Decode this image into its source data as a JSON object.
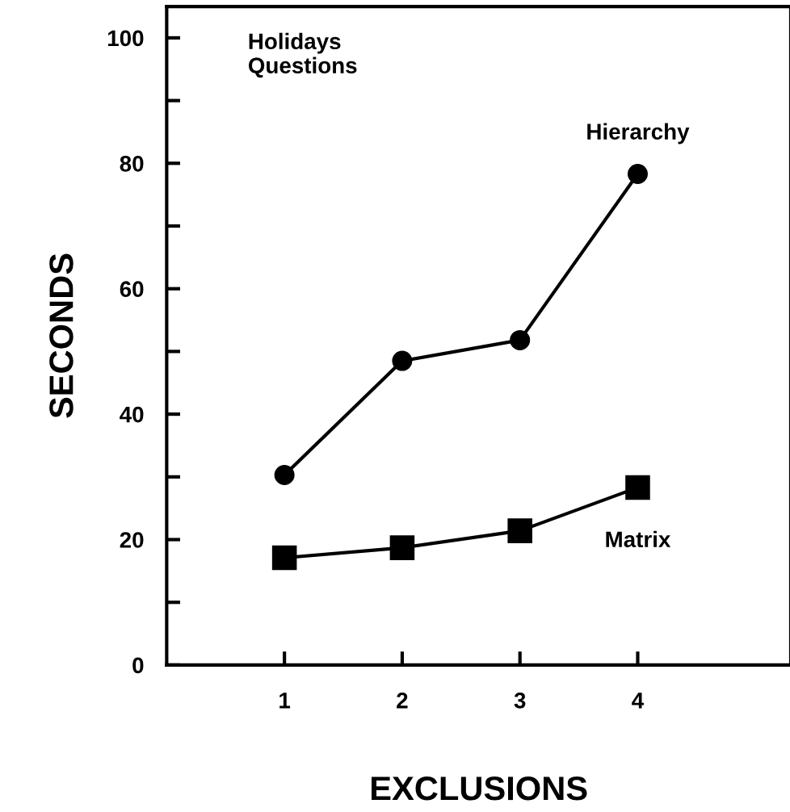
{
  "chart_data": {
    "type": "line",
    "xlabel": "EXCLUSIONS",
    "ylabel": "SECONDS",
    "annotations": [
      "Holidays\nQuestions"
    ],
    "x": [
      1,
      2,
      3,
      4
    ],
    "series": [
      {
        "name": "Hierarchy",
        "color": "#000000",
        "marker": "circle",
        "values": [
          30.3,
          48.5,
          51.8,
          78.3
        ]
      },
      {
        "name": "Matrix",
        "color": "#000000",
        "marker": "square",
        "values": [
          17.1,
          18.7,
          21.4,
          28.3
        ]
      }
    ],
    "xlim": [
      0,
      5.3
    ],
    "ylim": [
      0,
      105
    ],
    "xticks": [
      1,
      2,
      3,
      4
    ],
    "yticks": [
      0,
      {
        "value": 10,
        "label": null
      },
      20,
      {
        "value": 30,
        "label": null
      },
      40,
      {
        "value": 50,
        "label": null
      },
      60,
      {
        "value": 70,
        "label": null
      },
      80,
      {
        "value": 90,
        "label": null
      },
      100
    ],
    "grid": false,
    "legend": false,
    "line_style": "solid"
  }
}
